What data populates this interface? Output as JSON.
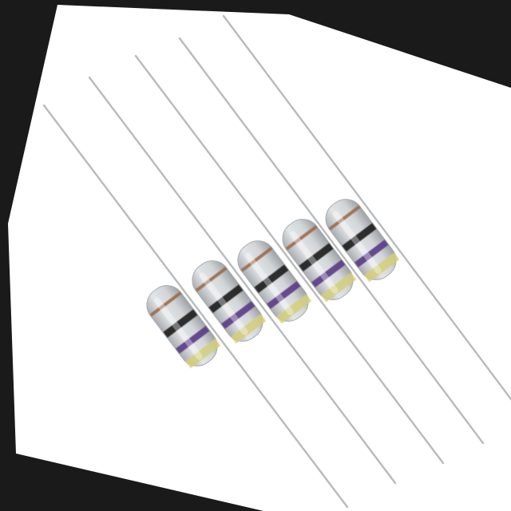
{
  "scene": {
    "subject": "axial-lead-resistors",
    "resistor_count": 5,
    "background_color": "#1a1a1a",
    "backdrop_color": "#ffffff",
    "body_color": "#d2d5d7",
    "body_shadow_color": "#a9adb1",
    "lead_color": "#b8babc",
    "bands": [
      {
        "name": "brown-band",
        "color": "#9c6a4a"
      },
      {
        "name": "black-band",
        "color": "#1e1e1e"
      },
      {
        "name": "violet-band",
        "color": "#5a3b86"
      },
      {
        "name": "gold-band",
        "color": "#d4cf7a"
      }
    ]
  }
}
